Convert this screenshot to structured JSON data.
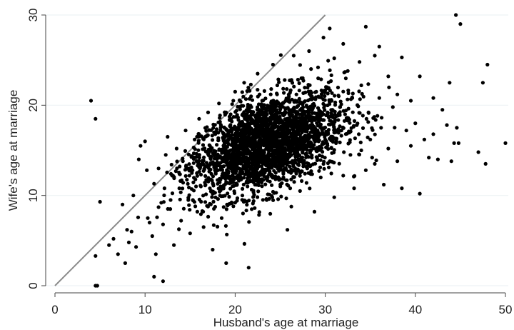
{
  "chart_data": {
    "type": "scatter",
    "title": "",
    "xlabel": "Husband's age at marriage",
    "ylabel": "Wife's age at marriage",
    "xlim": [
      0,
      50
    ],
    "ylim": [
      0,
      30
    ],
    "xticks": [
      0,
      10,
      20,
      30,
      40,
      50
    ],
    "yticks": [
      0,
      10,
      20,
      30
    ],
    "grid": true,
    "legend": "none",
    "colors": {
      "points": "#000000",
      "reference_line": "#8c8c8c",
      "grid": "#eef2f5",
      "axis": "#444444"
    },
    "reference_line": {
      "from": [
        0,
        0
      ],
      "to": [
        30,
        30
      ]
    },
    "series": [
      {
        "values_note_free": true,
        "points": [
          [
            4,
            20.5
          ],
          [
            4.5,
            18.5
          ],
          [
            4.5,
            3.3
          ],
          [
            4.5,
            0
          ],
          [
            4.7,
            0
          ],
          [
            5,
            9.3
          ],
          [
            6,
            4.5
          ],
          [
            6.5,
            5.2
          ],
          [
            7,
            3.5
          ],
          [
            7.5,
            9
          ],
          [
            7.8,
            2.5
          ],
          [
            8,
            6.2
          ],
          [
            8.2,
            4.8
          ],
          [
            8.5,
            6
          ],
          [
            8.7,
            10
          ],
          [
            9,
            4.3
          ],
          [
            9.3,
            14
          ],
          [
            9.5,
            15.5
          ],
          [
            10,
            16
          ],
          [
            10.2,
            12.8
          ],
          [
            10.3,
            7.5
          ],
          [
            10.5,
            7
          ],
          [
            10.8,
            5.5
          ],
          [
            11,
            11.3
          ],
          [
            11,
            1
          ],
          [
            11.2,
            3.5
          ],
          [
            11.5,
            13
          ],
          [
            11.8,
            9.2
          ],
          [
            12,
            6.8
          ],
          [
            12,
            0.5
          ],
          [
            12.3,
            14.5
          ],
          [
            12.5,
            16.5
          ],
          [
            12.8,
            8.5
          ],
          [
            13,
            12.2
          ],
          [
            13.2,
            4.5
          ],
          [
            13.5,
            15.2
          ],
          [
            13.8,
            10.8
          ],
          [
            14,
            7.2
          ],
          [
            14.2,
            13.8
          ],
          [
            14.5,
            17.2
          ],
          [
            14.8,
            9.5
          ],
          [
            15,
            5.8
          ],
          [
            15.2,
            12.5
          ],
          [
            15.5,
            16.2
          ],
          [
            15.8,
            8.2
          ],
          [
            16,
            14.5
          ],
          [
            16,
            18.5
          ],
          [
            16.2,
            11
          ],
          [
            16.5,
            6.5
          ],
          [
            16.8,
            13.2
          ],
          [
            17,
            19.2
          ],
          [
            17.2,
            15.5
          ],
          [
            17.5,
            4
          ],
          [
            17.5,
            10.2
          ],
          [
            17.8,
            16.8
          ],
          [
            18,
            12.8
          ],
          [
            18.2,
            20.2
          ],
          [
            18.5,
            7.5
          ],
          [
            18.5,
            14.2
          ],
          [
            18.8,
            17.5
          ],
          [
            19,
            2.5
          ],
          [
            19,
            11.5
          ],
          [
            19.2,
            15.8
          ],
          [
            19.5,
            13
          ],
          [
            19.5,
            19
          ],
          [
            19.8,
            8.8
          ],
          [
            20,
            16.5
          ],
          [
            20,
            21.5
          ],
          [
            20.2,
            12
          ],
          [
            20.5,
            14.8
          ],
          [
            20.5,
            18
          ],
          [
            20.8,
            10
          ],
          [
            21,
            15.5
          ],
          [
            21,
            22.5
          ],
          [
            21.2,
            17.2
          ],
          [
            21.5,
            2
          ],
          [
            21.5,
            13.5
          ],
          [
            21.8,
            19.8
          ],
          [
            22,
            14.2
          ],
          [
            22,
            16.8
          ],
          [
            22.2,
            11.2
          ],
          [
            22.5,
            18.5
          ],
          [
            22.5,
            23.5
          ],
          [
            22.8,
            15
          ],
          [
            23,
            12.8
          ],
          [
            23,
            20.5
          ],
          [
            23.2,
            16.2
          ],
          [
            23.5,
            9.5
          ],
          [
            23.5,
            17.8
          ],
          [
            23.8,
            14.5
          ],
          [
            24,
            21.8
          ],
          [
            24,
            15.8
          ],
          [
            24.2,
            24.5
          ],
          [
            24.5,
            13.2
          ],
          [
            24.5,
            18.8
          ],
          [
            24.8,
            16.5
          ],
          [
            25,
            11.8
          ],
          [
            25,
            20
          ],
          [
            25.2,
            14.8
          ],
          [
            25.5,
            22.8
          ],
          [
            25.5,
            17
          ],
          [
            25.8,
            6.2
          ],
          [
            26,
            15.5
          ],
          [
            26,
            19.5
          ],
          [
            26.2,
            12.5
          ],
          [
            26.5,
            25.5
          ],
          [
            26.5,
            16.8
          ],
          [
            26.8,
            21.2
          ],
          [
            27,
            14
          ],
          [
            27,
            18.2
          ],
          [
            27.2,
            10.5
          ],
          [
            27.5,
            23
          ],
          [
            27.8,
            15.2
          ],
          [
            28,
            19.8
          ],
          [
            28,
            13
          ],
          [
            28.2,
            26
          ],
          [
            28.5,
            17.5
          ],
          [
            28.8,
            8.2
          ],
          [
            29,
            21.5
          ],
          [
            29,
            15
          ],
          [
            29.2,
            24.2
          ],
          [
            29.5,
            12
          ],
          [
            29.5,
            18.8
          ],
          [
            29.8,
            27.5
          ],
          [
            30,
            16.2
          ],
          [
            30.2,
            22
          ],
          [
            30.5,
            13.8
          ],
          [
            30.5,
            28.5
          ],
          [
            30.8,
            19.5
          ],
          [
            31,
            9.8
          ],
          [
            31,
            25.2
          ],
          [
            31.2,
            15.8
          ],
          [
            31.5,
            21
          ],
          [
            31.8,
            17.2
          ],
          [
            32,
            12.2
          ],
          [
            32,
            26.8
          ],
          [
            32.2,
            19
          ],
          [
            32.5,
            23.8
          ],
          [
            32.8,
            14.5
          ],
          [
            33,
            20.8
          ],
          [
            33.2,
            10.8
          ],
          [
            33.5,
            17.8
          ],
          [
            33.8,
            24.8
          ],
          [
            34,
            15
          ],
          [
            34,
            22.2
          ],
          [
            34.5,
            12.8
          ],
          [
            34.5,
            28.7
          ],
          [
            34.8,
            19.2
          ],
          [
            35,
            16.2
          ],
          [
            35.5,
            25.5
          ],
          [
            35.5,
            13.5
          ],
          [
            36,
            20.8
          ],
          [
            36,
            26.5
          ],
          [
            36.2,
            17.5
          ],
          [
            36.5,
            11.2
          ],
          [
            37,
            23.2
          ],
          [
            37,
            15.2
          ],
          [
            37.5,
            19.8
          ],
          [
            38,
            21.2
          ],
          [
            38,
            13.8
          ],
          [
            38.5,
            25.3
          ],
          [
            38.5,
            10.8
          ],
          [
            39,
            17.2
          ],
          [
            39.5,
            20.5
          ],
          [
            39.5,
            15.5
          ],
          [
            40,
            18
          ],
          [
            40.5,
            10.2
          ],
          [
            40.5,
            23.2
          ],
          [
            41,
            16.2
          ],
          [
            41.5,
            14.2
          ],
          [
            42,
            20.8
          ],
          [
            42,
            16.8
          ],
          [
            42.5,
            14
          ],
          [
            43,
            19.5
          ],
          [
            43.5,
            17.8
          ],
          [
            43.8,
            22.5
          ],
          [
            44,
            13.8
          ],
          [
            44.3,
            15.8
          ],
          [
            44.5,
            30
          ],
          [
            44.6,
            17.5
          ],
          [
            44.8,
            15.8
          ],
          [
            45,
            29
          ],
          [
            47,
            14.8
          ],
          [
            47.5,
            22.5
          ],
          [
            47.8,
            13.5
          ],
          [
            48,
            24.5
          ],
          [
            50,
            15.8
          ]
        ],
        "core_cloud": {
          "count": 2600,
          "x_mean": 23.5,
          "x_sd": 4.3,
          "y_mean": 15.8,
          "y_sd": 2.9,
          "correlation": 0.45
        }
      }
    ]
  }
}
